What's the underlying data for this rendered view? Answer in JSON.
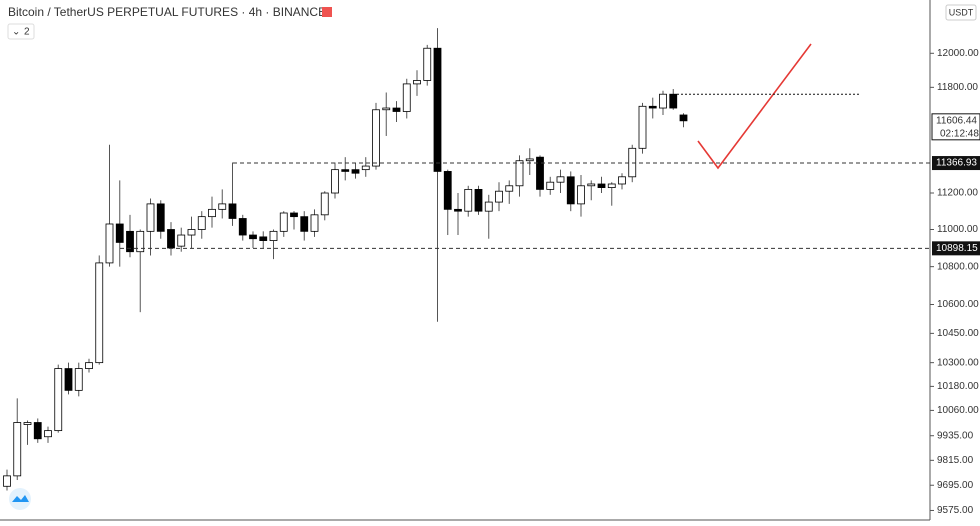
{
  "chart_data": {
    "type": "candlestick",
    "title": "Bitcoin / TetherUS PERPETUAL FUTURES · 4h · BINANCE",
    "interval_selector": "2",
    "currency": "USDT",
    "log_scale": true,
    "up_color": "#ffffff",
    "down_color": "#000000",
    "open": [
      9690,
      9740,
      9990,
      10000,
      9930,
      9960,
      10270,
      10160,
      10270,
      10300,
      10820,
      11030,
      10990,
      10880,
      10990,
      11140,
      11000,
      10910,
      10970,
      11000,
      11070,
      11110,
      11140,
      11060,
      10970,
      10960,
      10940,
      10990,
      11090,
      11070,
      10990,
      11080,
      11200,
      11330,
      11330,
      11330,
      11350,
      11670,
      11680,
      11660,
      11820,
      11840,
      12030,
      11320,
      11110,
      11100,
      11220,
      11100,
      11150,
      11210,
      11240,
      11380,
      11400,
      11220,
      11260,
      11290,
      11140,
      11240,
      11250,
      11230,
      11250,
      11290,
      11450,
      11690,
      11680,
      11760,
      11640
    ],
    "high": [
      9770,
      10120,
      10010,
      10020,
      9980,
      10290,
      10300,
      10300,
      10320,
      10860,
      11470,
      11270,
      11080,
      11000,
      11170,
      11160,
      11040,
      11010,
      11070,
      11100,
      11180,
      11220,
      11370,
      11080,
      10990,
      10990,
      11000,
      11100,
      11100,
      11100,
      11110,
      11210,
      11370,
      11400,
      11370,
      11400,
      11710,
      11770,
      11720,
      11850,
      11900,
      12050,
      12150,
      11330,
      11200,
      11240,
      11240,
      11190,
      11260,
      11270,
      11410,
      11450,
      11410,
      11290,
      11330,
      11320,
      11300,
      11270,
      11290,
      11260,
      11310,
      11470,
      11710,
      11740,
      11780,
      11790,
      11650
    ],
    "low": [
      9670,
      9720,
      9890,
      9900,
      9900,
      9950,
      10140,
      10130,
      10250,
      10290,
      10800,
      10800,
      10850,
      10560,
      10860,
      10950,
      10860,
      10880,
      10900,
      10950,
      11010,
      11060,
      11020,
      10940,
      10900,
      10900,
      10840,
      10960,
      11000,
      10940,
      10960,
      11050,
      11170,
      11270,
      11280,
      11290,
      11330,
      11520,
      11600,
      11620,
      11750,
      11810,
      10510,
      10970,
      10970,
      11070,
      11080,
      10950,
      11100,
      11140,
      11180,
      11300,
      11180,
      11190,
      11200,
      11100,
      11070,
      11160,
      11200,
      11130,
      11220,
      11260,
      11420,
      11620,
      11640,
      11670,
      11570
    ],
    "close": [
      9740,
      10000,
      10000,
      9920,
      9960,
      10270,
      10160,
      10270,
      10300,
      10820,
      11030,
      10930,
      10880,
      10990,
      11140,
      10990,
      10900,
      10970,
      11000,
      11070,
      11110,
      11140,
      11060,
      10970,
      10950,
      10940,
      10990,
      11090,
      11070,
      10990,
      11080,
      11200,
      11330,
      11320,
      11310,
      11350,
      11670,
      11680,
      11660,
      11820,
      11840,
      12030,
      11320,
      11110,
      11100,
      11220,
      11100,
      11150,
      11210,
      11240,
      11380,
      11390,
      11220,
      11260,
      11290,
      11140,
      11240,
      11250,
      11230,
      11250,
      11290,
      11450,
      11690,
      11680,
      11760,
      11680,
      11606.44
    ],
    "ylim": [
      9530,
      12320
    ],
    "yticks": [
      {
        "value": 12000,
        "label": "12000.00"
      },
      {
        "value": 11800,
        "label": "11800.00"
      },
      {
        "value": 11200,
        "label": "11200.00"
      },
      {
        "value": 11000,
        "label": "11000.00"
      },
      {
        "value": 10800,
        "label": "10800.00"
      },
      {
        "value": 10600,
        "label": "10600.00"
      },
      {
        "value": 10450,
        "label": "10450.00"
      },
      {
        "value": 10300,
        "label": "10300.00"
      },
      {
        "value": 10180,
        "label": "10180.00"
      },
      {
        "value": 10060,
        "label": "10060.00"
      },
      {
        "value": 9935,
        "label": "9935.00"
      },
      {
        "value": 9815,
        "label": "9815.00"
      },
      {
        "value": 9695,
        "label": "9695.00"
      },
      {
        "value": 9575,
        "label": "9575.00"
      }
    ],
    "last_price": {
      "value": 11606.44,
      "label": "11606.44"
    },
    "countdown": "02:12:48",
    "levels": [
      {
        "value": 11366.93,
        "label": "11366.93"
      },
      {
        "value": 10898.15,
        "label": "10898.15"
      }
    ],
    "high_mark": 11760
  }
}
